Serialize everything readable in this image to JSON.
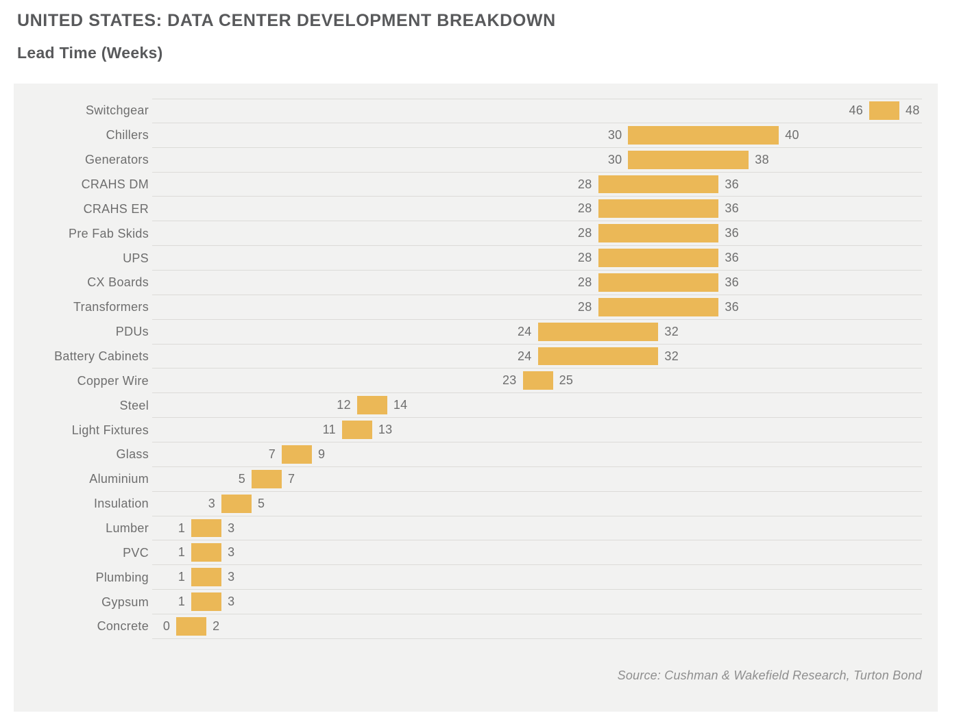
{
  "header": {
    "title": "UNITED STATES: DATA CENTER DEVELOPMENT BREAKDOWN",
    "subtitle": "Lead Time (Weeks)"
  },
  "footer": {
    "source": "Source: Cushman & Wakefield Research, Turton Bond"
  },
  "colors": {
    "bar": "#ebb857",
    "panel_background": "#f2f2f1",
    "gridline": "#dcdbd8",
    "title_text": "#58595b",
    "label_text": "#6e6e6e",
    "source_text": "#8e8e8e"
  },
  "chart_data": {
    "type": "bar",
    "variant": "horizontal-range-bar",
    "title": "UNITED STATES: DATA CENTER DEVELOPMENT BREAKDOWN",
    "subtitle": "Lead Time (Weeks)",
    "xlabel": "Lead Time (Weeks)",
    "ylabel": "",
    "xlim": [
      -1.6,
      49.5
    ],
    "grid": "row separator lines only, no axis ticks",
    "legend": "none",
    "bar_color": "#ebb857",
    "value_labels": "start value left of bar, end value right of bar",
    "items": [
      {
        "label": "Switchgear",
        "start": 46,
        "end": 48
      },
      {
        "label": "Chillers",
        "start": 30,
        "end": 40
      },
      {
        "label": "Generators",
        "start": 30,
        "end": 38
      },
      {
        "label": "CRAHS DM",
        "start": 28,
        "end": 36
      },
      {
        "label": "CRAHS ER",
        "start": 28,
        "end": 36
      },
      {
        "label": "Pre Fab Skids",
        "start": 28,
        "end": 36
      },
      {
        "label": "UPS",
        "start": 28,
        "end": 36
      },
      {
        "label": "CX Boards",
        "start": 28,
        "end": 36
      },
      {
        "label": "Transformers",
        "start": 28,
        "end": 36
      },
      {
        "label": "PDUs",
        "start": 24,
        "end": 32
      },
      {
        "label": "Battery Cabinets",
        "start": 24,
        "end": 32
      },
      {
        "label": "Copper Wire",
        "start": 23,
        "end": 25
      },
      {
        "label": "Steel",
        "start": 12,
        "end": 14
      },
      {
        "label": "Light Fixtures",
        "start": 11,
        "end": 13
      },
      {
        "label": "Glass",
        "start": 7,
        "end": 9
      },
      {
        "label": "Aluminium",
        "start": 5,
        "end": 7
      },
      {
        "label": "Insulation",
        "start": 3,
        "end": 5
      },
      {
        "label": "Lumber",
        "start": 1,
        "end": 3
      },
      {
        "label": "PVC",
        "start": 1,
        "end": 3
      },
      {
        "label": "Plumbing",
        "start": 1,
        "end": 3
      },
      {
        "label": "Gypsum",
        "start": 1,
        "end": 3
      },
      {
        "label": "Concrete",
        "start": 0,
        "end": 2
      }
    ]
  }
}
